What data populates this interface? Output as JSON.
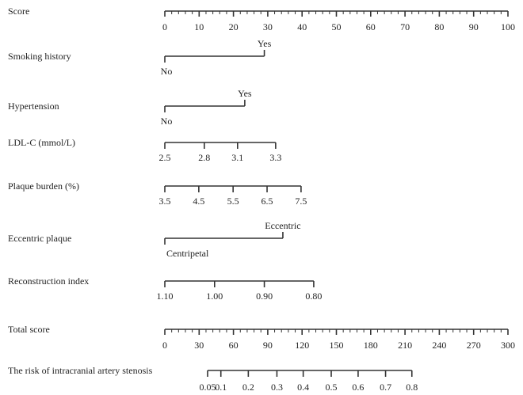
{
  "chart_data": {
    "type": "nomogram",
    "title": "",
    "points_axis": {
      "label": "Score",
      "range": [
        0,
        100
      ],
      "major_step": 10,
      "minor_step": 2,
      "tick_labels": [
        "0",
        "10",
        "20",
        "30",
        "40",
        "50",
        "60",
        "70",
        "80",
        "90",
        "100"
      ]
    },
    "variables": [
      {
        "name": "Smoking history",
        "kind": "binary",
        "levels": [
          {
            "label": "No",
            "points": 0
          },
          {
            "label": "Yes",
            "points": 29
          }
        ]
      },
      {
        "name": "Hypertension",
        "kind": "binary",
        "levels": [
          {
            "label": "No",
            "points": 0
          },
          {
            "label": "Yes",
            "points": 23.3
          }
        ]
      },
      {
        "name": "LDL-C (mmol/L)",
        "kind": "continuous",
        "levels": [
          {
            "label": "2.5",
            "points": 0
          },
          {
            "label": "2.8",
            "points": 11.5
          },
          {
            "label": "3.1",
            "points": 21.2
          },
          {
            "label": "3.3",
            "points": 32.3
          }
        ]
      },
      {
        "name": "Plaque burden (%)",
        "kind": "continuous",
        "levels": [
          {
            "label": "3.5",
            "points": 0
          },
          {
            "label": "4.5",
            "points": 9.9
          },
          {
            "label": "5.5",
            "points": 19.9
          },
          {
            "label": "6.5",
            "points": 29.8
          },
          {
            "label": "7.5",
            "points": 39.7
          }
        ]
      },
      {
        "name": "Eccentric plaque",
        "kind": "binary",
        "levels": [
          {
            "label": "Centripetal",
            "points": 0
          },
          {
            "label": "Eccentric",
            "points": 34.4
          }
        ]
      },
      {
        "name": "Reconstruction index",
        "kind": "continuous",
        "levels": [
          {
            "label": "1.10",
            "points": 0
          },
          {
            "label": "1.00",
            "points": 14.5
          },
          {
            "label": "0.90",
            "points": 29
          },
          {
            "label": "0.80",
            "points": 43.4
          }
        ]
      }
    ],
    "total_axis": {
      "label": "Total score",
      "range": [
        0,
        300
      ],
      "major_step": 30,
      "minor_step": 6,
      "tick_labels": [
        "0",
        "30",
        "60",
        "90",
        "120",
        "150",
        "180",
        "210",
        "240",
        "270",
        "300"
      ]
    },
    "risk_axis": {
      "label": "The risk of intracranial artery stenosis",
      "ticks": [
        {
          "label": "0.05",
          "total_score": 37.4
        },
        {
          "label": "0.1",
          "total_score": 49
        },
        {
          "label": "0.2",
          "total_score": 73
        },
        {
          "label": "0.3",
          "total_score": 98
        },
        {
          "label": "0.4",
          "total_score": 121
        },
        {
          "label": "0.5",
          "total_score": 145.5
        },
        {
          "label": "0.6",
          "total_score": 169
        },
        {
          "label": "0.7",
          "total_score": 193
        },
        {
          "label": "0.8",
          "total_score": 216
        }
      ]
    },
    "colors": {
      "line": "#333333",
      "text": "#222222"
    }
  }
}
